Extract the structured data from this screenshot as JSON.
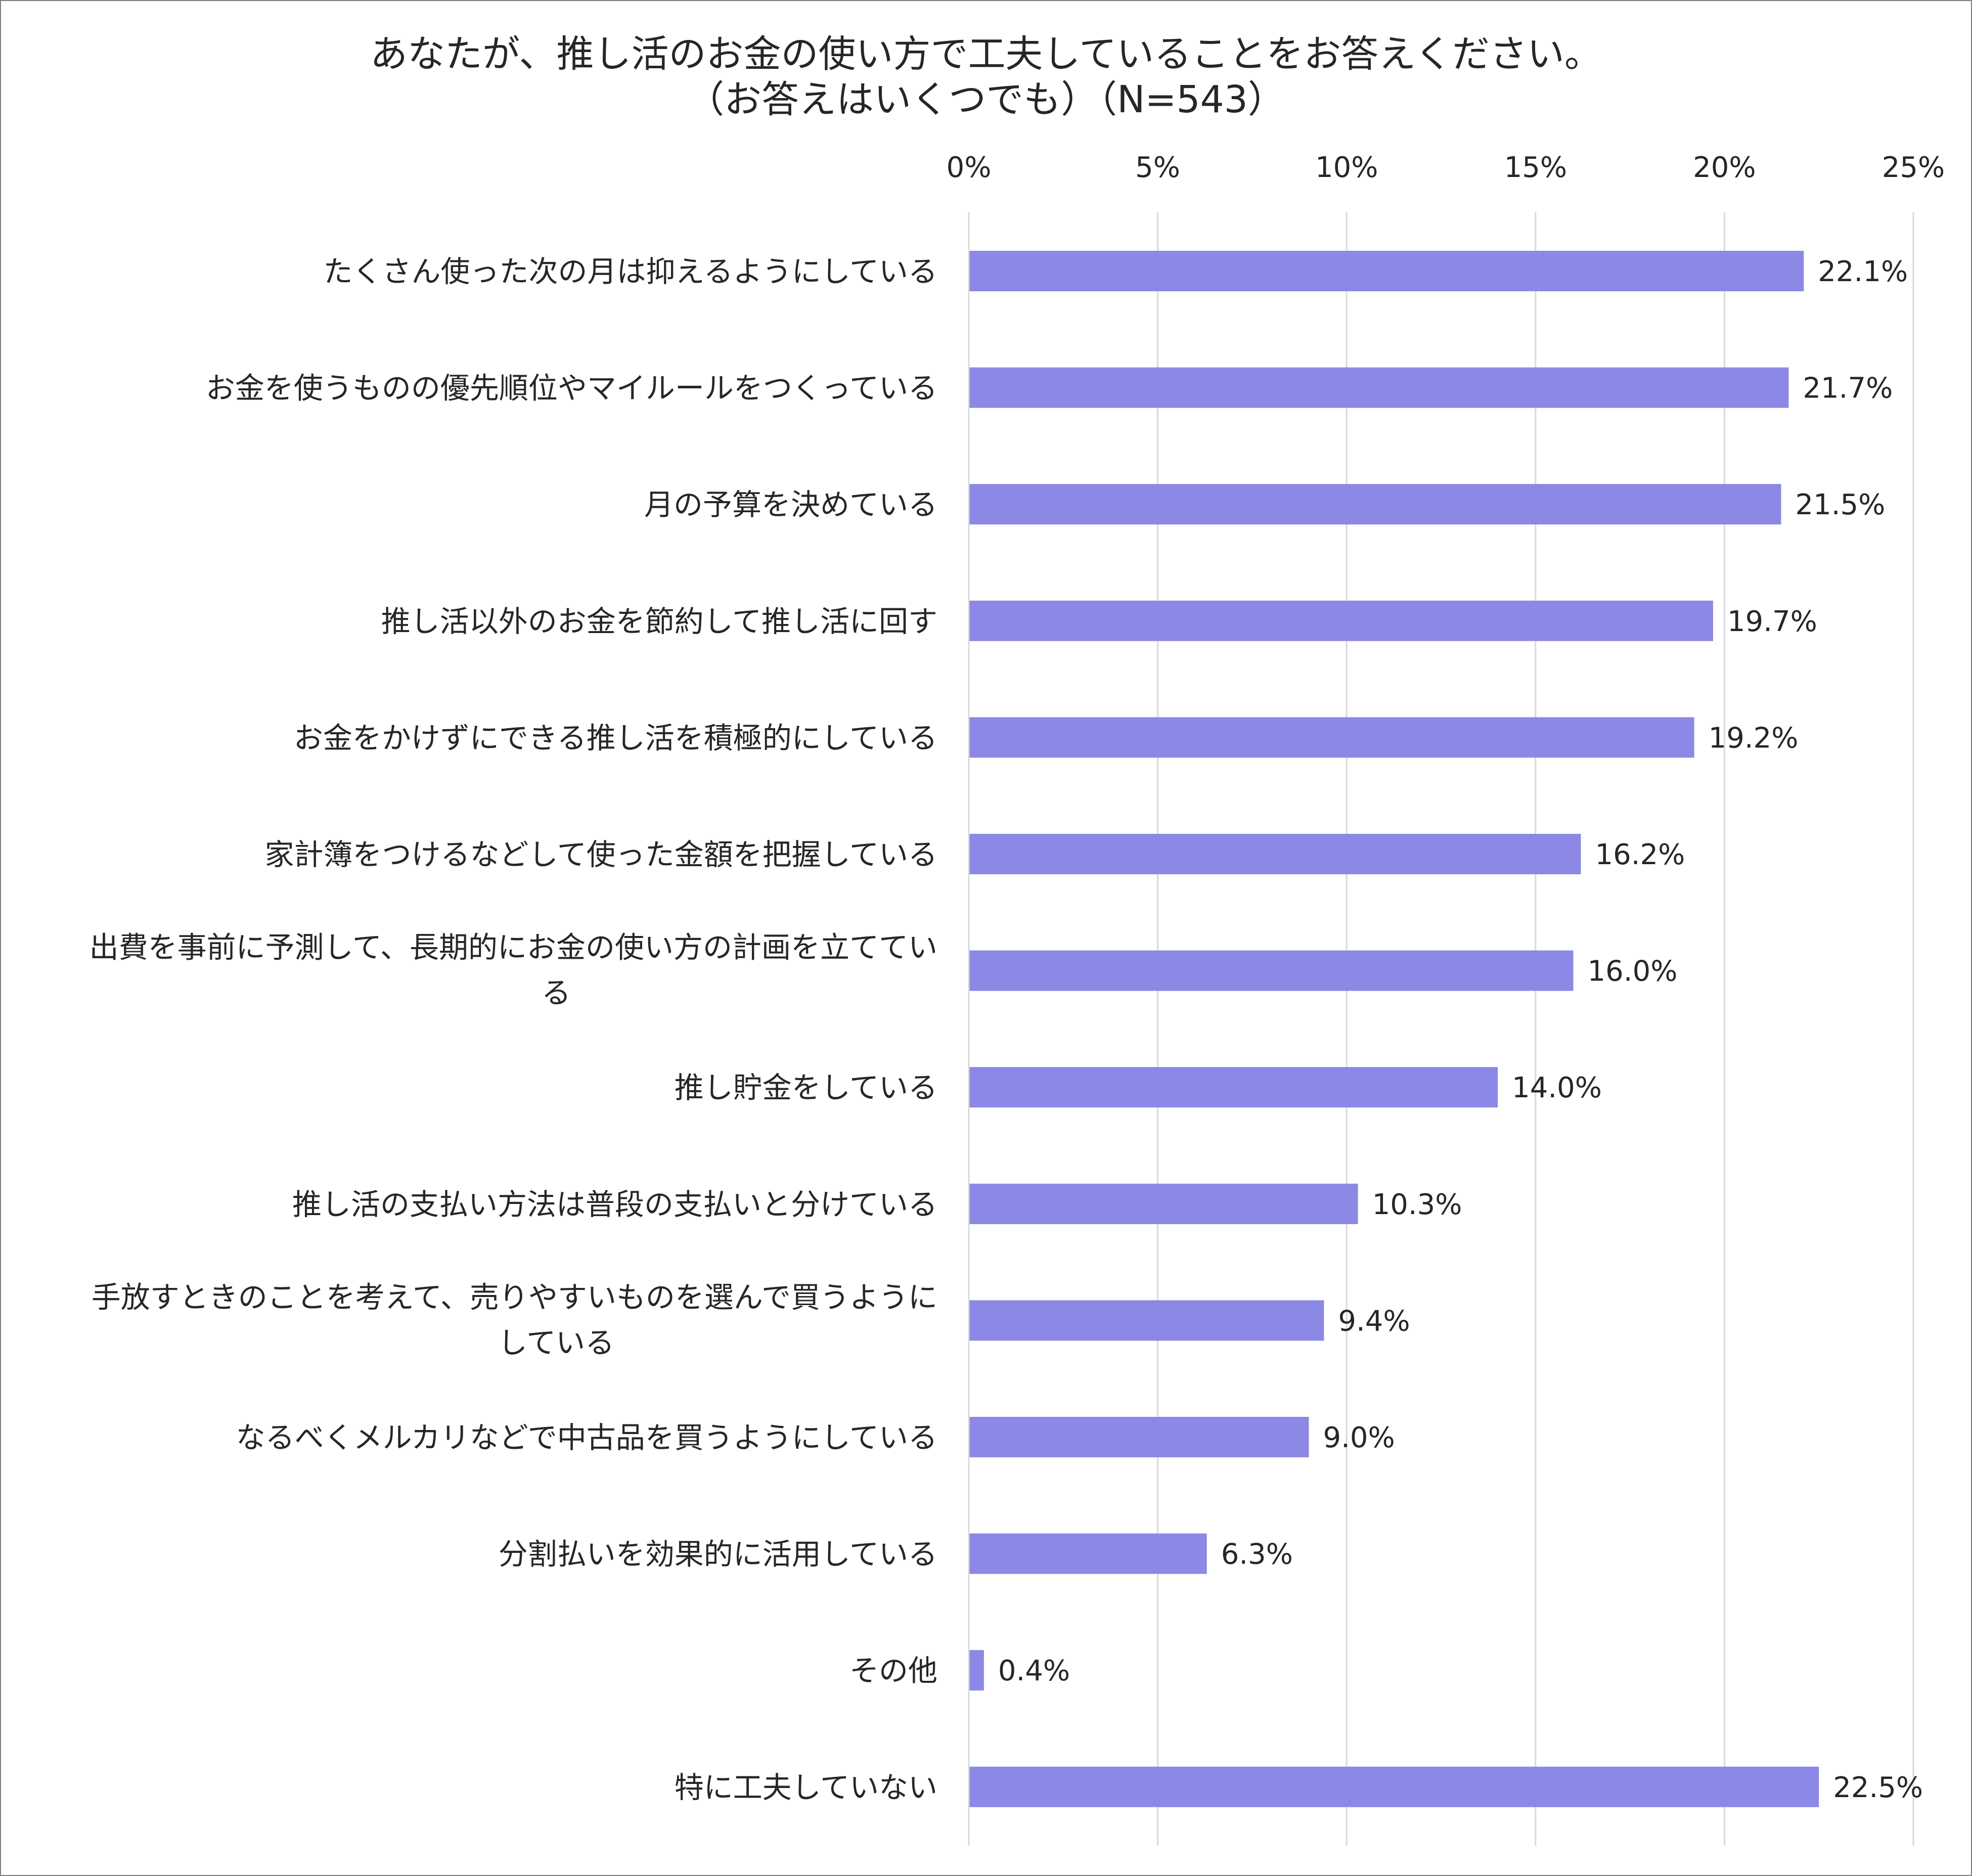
{
  "chart_data": {
    "type": "bar",
    "orientation": "horizontal",
    "title": "あなたが、推し活のお金の使い方で工夫していることをお答えください。",
    "subtitle": "（お答えはいくつでも）（N=543）",
    "categories": [
      "たくさん使った次の月は抑えるようにしている",
      "お金を使うものの優先順位やマイルールをつくっている",
      "月の予算を決めている",
      "推し活以外のお金を節約して推し活に回す",
      "お金をかけずにできる推し活を積極的にしている",
      "家計簿をつけるなどして使った金額を把握している",
      "出費を事前に予測して、長期的にお金の使い方の計画を立てている",
      "推し貯金をしている",
      "推し活の支払い方法は普段の支払いと分けている",
      "手放すときのことを考えて、売りやすいものを選んで買うようにしている",
      "なるべくメルカリなどで中古品を買うようにしている",
      "分割払いを効果的に活用している",
      "その他",
      "特に工夫していない"
    ],
    "values": [
      22.1,
      21.7,
      21.5,
      19.7,
      19.2,
      16.2,
      16.0,
      14.0,
      10.3,
      9.4,
      9.0,
      6.3,
      0.4,
      22.5
    ],
    "value_labels": [
      "22.1%",
      "21.7%",
      "21.5%",
      "19.7%",
      "19.2%",
      "16.2%",
      "16.0%",
      "14.0%",
      "10.3%",
      "9.4%",
      "9.0%",
      "6.3%",
      "0.4%",
      "22.5%"
    ],
    "xticks": [
      "0%",
      "5%",
      "10%",
      "15%",
      "20%",
      "25%"
    ],
    "xlim": [
      0,
      25
    ],
    "xaxis_position": "top",
    "grid": true,
    "legend": "none",
    "bar_color": "#8b89e5",
    "grid_color": "#d9d9d9"
  }
}
